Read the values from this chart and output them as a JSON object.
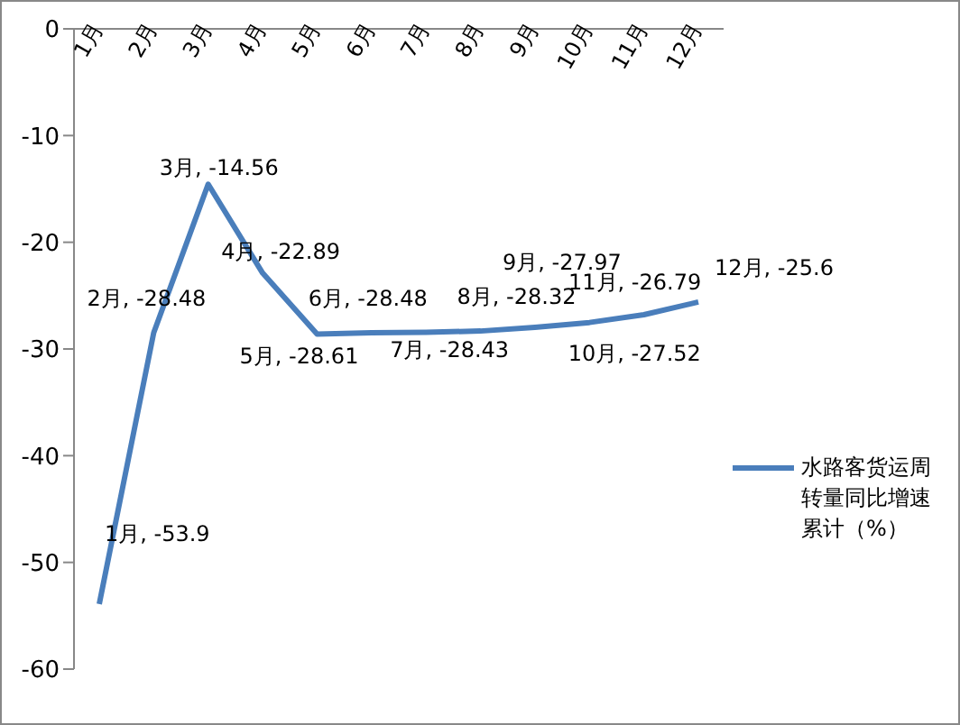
{
  "chart_data": {
    "type": "line",
    "categories": [
      "1月",
      "2月",
      "3月",
      "4月",
      "5月",
      "6月",
      "7月",
      "8月",
      "9月",
      "10月",
      "11月",
      "12月"
    ],
    "series": [
      {
        "name": "水路客货运周转量同比增速累计（%）",
        "color": "#4a7ebb",
        "values": [
          -53.9,
          -28.48,
          -14.56,
          -22.89,
          -28.61,
          -28.48,
          -28.43,
          -28.32,
          -27.97,
          -27.52,
          -26.79,
          -25.6
        ],
        "value_labels": [
          "1月, -53.9",
          "2月, -28.48",
          "3月, -14.56",
          "4月, -22.89",
          "5月, -28.61",
          "6月, -28.48",
          "7月, -28.43",
          "8月, -28.32",
          "9月, -27.97",
          "10月, -27.52",
          "11月, -26.79",
          "12月, -25.6"
        ]
      }
    ],
    "ylim": [
      -60,
      0
    ],
    "yticks": [
      -60,
      -50,
      -40,
      -30,
      -20,
      -10,
      0
    ],
    "grid": false,
    "legend": "right",
    "marker": "none",
    "line_style": "solid"
  }
}
